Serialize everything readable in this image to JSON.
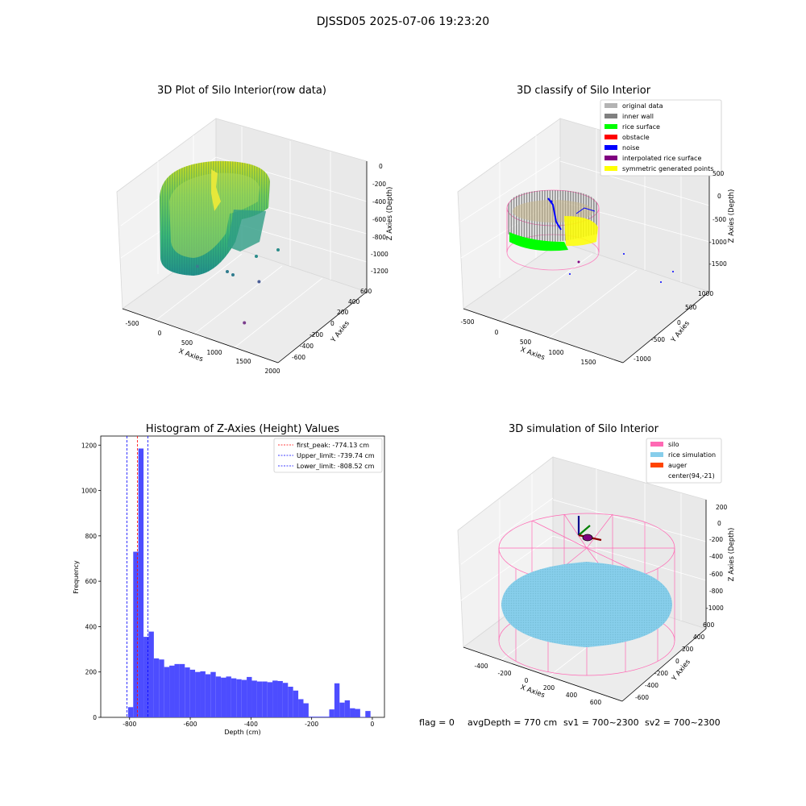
{
  "figure": {
    "title": "DJSSD05 2025-07-06 19:23:20",
    "footer": {
      "flag": "flag = 0",
      "avg_depth": "avgDepth = 770 cm",
      "sv1": "sv1 = 700~2300",
      "sv2": "sv2 = 700~2300"
    }
  },
  "colors": {
    "viridis_low": "#440154",
    "viridis_mid": "#21918c",
    "viridis_high": "#fde725",
    "original": "#b3b3b3",
    "inner_wall": "#808080",
    "rice_surface": "#00ff00",
    "obstacle": "#ff0000",
    "noise": "#0000ff",
    "interpolated": "#800080",
    "symmetric": "#ffff00",
    "silo": "#ff69b4",
    "rice_simulation": "#87ceeb",
    "auger": "#ff4500",
    "hist_bar": "#4d4dff",
    "peak_line": "#ff0000",
    "limit_line": "#0000ff"
  },
  "chart_data": [
    {
      "type": "scatter",
      "subtype": "3d",
      "title": "3D Plot of Silo Interior(row data)",
      "xlabel": "X Axies",
      "ylabel": "Y Axies",
      "zlabel": "Z Axies (Depth)",
      "x_ticks": [
        "-500",
        "0",
        "500",
        "1000",
        "1500",
        "2000"
      ],
      "y_ticks": [
        "600",
        "400",
        "200",
        "0",
        "-200",
        "-400",
        "-600"
      ],
      "z_ticks": [
        "0",
        "-200",
        "-400",
        "-600",
        "-800",
        "-1000",
        "-1200"
      ],
      "colormap": "viridis",
      "outlier_points": [
        {
          "x": 1900,
          "y": -400,
          "z": -1150
        },
        {
          "x": 1550,
          "y": 300,
          "z": -1100
        },
        {
          "x": 600,
          "y": 100,
          "z": -1000
        }
      ]
    },
    {
      "type": "scatter",
      "subtype": "3d",
      "title": "3D classify of Silo Interior",
      "xlabel": "X Axies",
      "ylabel": "Y Axies",
      "zlabel": "Z Axies (Depth)",
      "x_ticks": [
        "-500",
        "0",
        "500",
        "1000",
        "1500"
      ],
      "y_ticks": [
        "1000",
        "500",
        "0",
        "-500",
        "-1000"
      ],
      "z_ticks": [
        "500",
        "0",
        "-500",
        "-1000",
        "-1500"
      ],
      "legend": [
        "original data",
        "inner wall",
        "rice surface",
        "obstacle",
        "noise",
        "interpolated rice surface",
        "symmetric generated points"
      ],
      "legend_position": "top-right"
    },
    {
      "type": "bar",
      "subtype": "histogram",
      "title": "Histogram of Z-Axies (Height) Values",
      "xlabel": "Depth (cm)",
      "ylabel": "Frequency",
      "xlim": [
        -895,
        40
      ],
      "ylim": [
        0,
        1240
      ],
      "x_ticks": [
        -800,
        -600,
        -400,
        -200,
        0
      ],
      "y_ticks": [
        0,
        200,
        400,
        600,
        800,
        1000,
        1200
      ],
      "bins": [
        {
          "x0": -805,
          "x1": -788,
          "value": 45
        },
        {
          "x0": -788,
          "x1": -771,
          "value": 730
        },
        {
          "x0": -771,
          "x1": -754,
          "value": 1185
        },
        {
          "x0": -754,
          "x1": -737,
          "value": 355
        },
        {
          "x0": -737,
          "x1": -720,
          "value": 378
        },
        {
          "x0": -720,
          "x1": -703,
          "value": 260
        },
        {
          "x0": -703,
          "x1": -686,
          "value": 255
        },
        {
          "x0": -686,
          "x1": -669,
          "value": 222
        },
        {
          "x0": -669,
          "x1": -652,
          "value": 228
        },
        {
          "x0": -652,
          "x1": -635,
          "value": 235
        },
        {
          "x0": -635,
          "x1": -618,
          "value": 235
        },
        {
          "x0": -618,
          "x1": -601,
          "value": 220
        },
        {
          "x0": -601,
          "x1": -584,
          "value": 210
        },
        {
          "x0": -584,
          "x1": -567,
          "value": 200
        },
        {
          "x0": -567,
          "x1": -550,
          "value": 203
        },
        {
          "x0": -550,
          "x1": -533,
          "value": 190
        },
        {
          "x0": -533,
          "x1": -516,
          "value": 200
        },
        {
          "x0": -516,
          "x1": -499,
          "value": 180
        },
        {
          "x0": -499,
          "x1": -482,
          "value": 175
        },
        {
          "x0": -482,
          "x1": -465,
          "value": 180
        },
        {
          "x0": -465,
          "x1": -448,
          "value": 172
        },
        {
          "x0": -448,
          "x1": -431,
          "value": 168
        },
        {
          "x0": -431,
          "x1": -414,
          "value": 165
        },
        {
          "x0": -414,
          "x1": -397,
          "value": 178
        },
        {
          "x0": -397,
          "x1": -380,
          "value": 162
        },
        {
          "x0": -380,
          "x1": -363,
          "value": 158
        },
        {
          "x0": -363,
          "x1": -346,
          "value": 158
        },
        {
          "x0": -346,
          "x1": -329,
          "value": 155
        },
        {
          "x0": -329,
          "x1": -312,
          "value": 162
        },
        {
          "x0": -312,
          "x1": -295,
          "value": 160
        },
        {
          "x0": -295,
          "x1": -278,
          "value": 152
        },
        {
          "x0": -278,
          "x1": -261,
          "value": 135
        },
        {
          "x0": -261,
          "x1": -244,
          "value": 118
        },
        {
          "x0": -244,
          "x1": -227,
          "value": 80
        },
        {
          "x0": -227,
          "x1": -210,
          "value": 62
        },
        {
          "x0": -210,
          "x1": -193,
          "value": 3
        },
        {
          "x0": -193,
          "x1": -176,
          "value": 3
        },
        {
          "x0": -176,
          "x1": -159,
          "value": 3
        },
        {
          "x0": -159,
          "x1": -142,
          "value": 3
        },
        {
          "x0": -142,
          "x1": -125,
          "value": 35
        },
        {
          "x0": -125,
          "x1": -108,
          "value": 150
        },
        {
          "x0": -108,
          "x1": -91,
          "value": 65
        },
        {
          "x0": -91,
          "x1": -74,
          "value": 75
        },
        {
          "x0": -74,
          "x1": -57,
          "value": 40
        },
        {
          "x0": -57,
          "x1": -40,
          "value": 37
        },
        {
          "x0": -40,
          "x1": -23,
          "value": 2
        },
        {
          "x0": -23,
          "x1": -6,
          "value": 28
        }
      ],
      "lines": [
        {
          "label": "first_peak: -774.13 cm",
          "x": -774.13,
          "color": "#ff0000"
        },
        {
          "label": "Upper_limit: -739.74 cm",
          "x": -739.74,
          "color": "#0000ff"
        },
        {
          "label": "Lower_limit: -808.52 cm",
          "x": -808.52,
          "color": "#0000ff"
        }
      ],
      "legend_position": "top-right"
    },
    {
      "type": "scatter",
      "subtype": "3d",
      "title": "3D simulation of Silo Interior",
      "xlabel": "X Axies",
      "ylabel": "Y Axies",
      "zlabel": "Z Axies (Depth)",
      "x_ticks": [
        "-400",
        "-200",
        "0",
        "200",
        "400",
        "600"
      ],
      "y_ticks": [
        "600",
        "400",
        "200",
        "0",
        "-200",
        "-400",
        "-600"
      ],
      "z_ticks": [
        "200",
        "0",
        "-200",
        "-400",
        "-600",
        "-800",
        "-1000"
      ],
      "legend": [
        "silo",
        "rice simulation",
        "auger",
        "center(94,-21)"
      ],
      "legend_position": "top-right"
    }
  ]
}
